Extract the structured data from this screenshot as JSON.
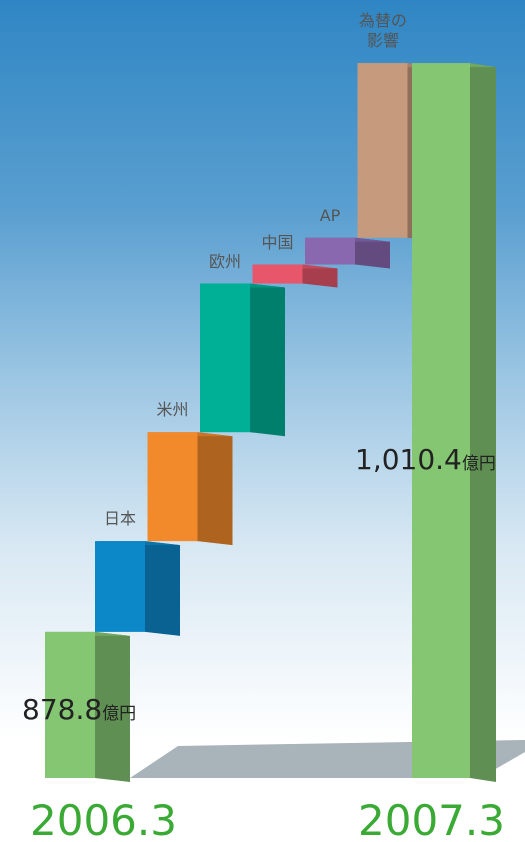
{
  "chart_data": {
    "type": "waterfall",
    "unit": "億円",
    "ylim": [
      845,
      1025
    ],
    "start": {
      "label": "2006.3",
      "value": 878.8,
      "value_label": "878.8",
      "color": "#84c672"
    },
    "end": {
      "label": "2007.3",
      "value": 1010.4,
      "value_label": "1,010.4",
      "color": "#84c672"
    },
    "steps": {
      "categories": [
        "日本",
        "米州",
        "欧州",
        "中国",
        "AP",
        "為替の影響"
      ],
      "values": [
        21.0,
        25.2,
        34.4,
        4.4,
        6.2,
        40.4
      ],
      "colors": [
        "#0c88c9",
        "#f28a2b",
        "#00b096",
        "#e8566c",
        "#8a68b0",
        "#c69a7c"
      ]
    }
  }
}
